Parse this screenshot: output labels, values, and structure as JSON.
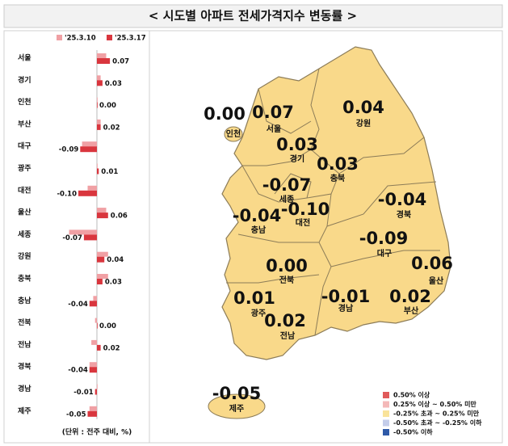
{
  "chart_data": {
    "type": "bar",
    "orientation": "horizontal",
    "title": "< 시도별 아파트 전세가격지수 변동률 >",
    "note": "(단위 : 전주 대비, %)",
    "categories": [
      "서울",
      "경기",
      "인천",
      "부산",
      "대구",
      "광주",
      "대전",
      "울산",
      "세종",
      "강원",
      "충북",
      "충남",
      "전북",
      "전남",
      "경북",
      "경남",
      "제주"
    ],
    "series": [
      {
        "name": "'25.3.10",
        "color": "#f0a0a4",
        "values": [
          0.05,
          0.02,
          0,
          0.02,
          -0.08,
          0,
          -0.05,
          0.05,
          -0.15,
          0.06,
          0.06,
          -0.02,
          -0.01,
          -0.03,
          -0.04,
          0,
          -0.04
        ]
      },
      {
        "name": "'25.3.17",
        "color": "#d9363e",
        "values": [
          0.07,
          0.03,
          0,
          0.02,
          -0.09,
          0.01,
          -0.1,
          0.06,
          -0.07,
          0.04,
          0.03,
          -0.04,
          0,
          0.02,
          -0.04,
          -0.01,
          -0.05
        ],
        "value_labels": [
          "0.07",
          "0.03",
          "0.00",
          "0.02",
          "-0.09",
          "0.01",
          "-0.10",
          "0.06",
          "-0.07",
          "0.04",
          "0.03",
          "-0.04",
          "0.00",
          "0.02",
          "-0.04",
          "-0.01",
          "-0.05"
        ]
      }
    ]
  },
  "map": {
    "region_color": "#f9d98a",
    "legend": [
      {
        "label": "0.50% 이상",
        "color": "#e05a5a"
      },
      {
        "label": "0.25% 이상 ~ 0.50% 미만",
        "color": "#f4b8b8"
      },
      {
        "label": "-0.25% 초과 ~ 0.25% 미만",
        "color": "#f9e39a"
      },
      {
        "label": "-0.50% 초과 ~ -0.25% 이하",
        "color": "#c4cdea"
      },
      {
        "label": "-0.50% 이하",
        "color": "#2f5aa8"
      }
    ]
  }
}
